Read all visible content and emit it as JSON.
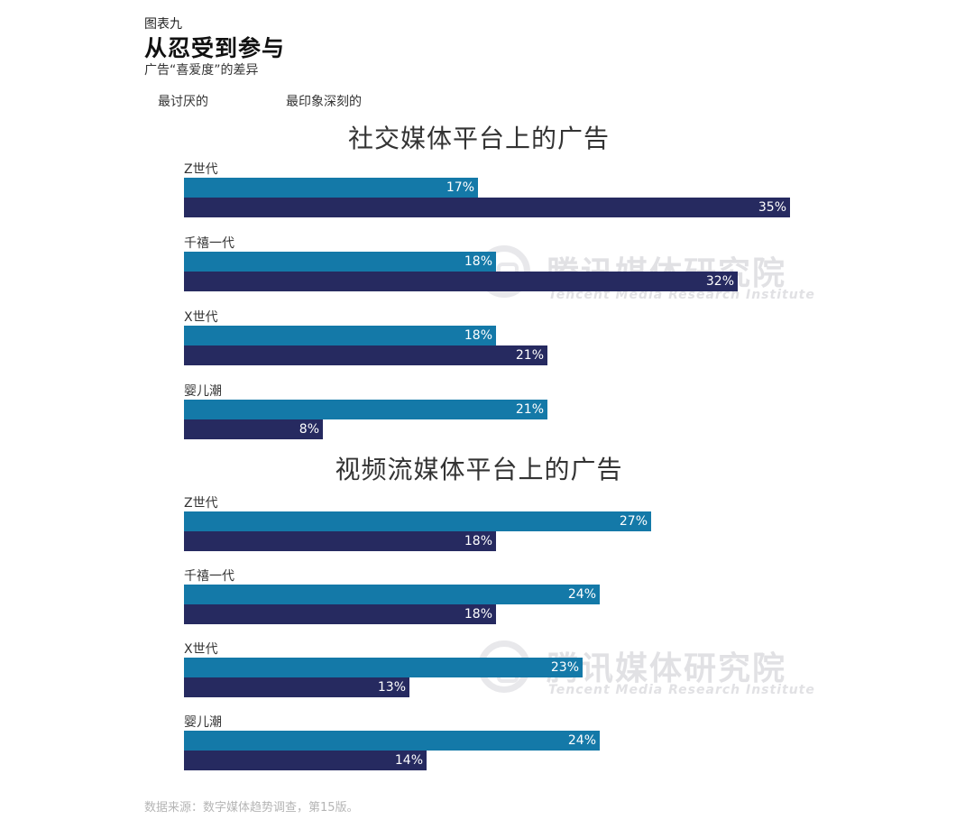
{
  "header": {
    "chart_label": "图表九",
    "title": "从忍受到参与",
    "subtitle": "广告“喜爱度”的差异"
  },
  "legend": [
    {
      "label": "最讨厌的",
      "color": "#1479a8"
    },
    {
      "label": "最印象深刻的",
      "color": "#262a60"
    }
  ],
  "watermark": {
    "cn": "腾讯媒体研究院",
    "en": "Tencent Media Research Institute",
    "logo_icon": "tencent-media-research-logo-icon"
  },
  "source": "数据来源：数字媒体趋势调查，第15版。",
  "chart_data": [
    {
      "type": "bar",
      "title": "社交媒体平台上的广告",
      "categories": [
        "Z世代",
        "千禧一代",
        "X世代",
        "婴儿潮"
      ],
      "series": [
        {
          "name": "最讨厌的",
          "values": [
            17,
            18,
            18,
            21
          ]
        },
        {
          "name": "最印象深刻的",
          "values": [
            35,
            32,
            21,
            8
          ]
        }
      ],
      "value_suffix": "%",
      "orientation": "horizontal",
      "legend_position": "top-left",
      "grid": false
    },
    {
      "type": "bar",
      "title": "视频流媒体平台上的广告",
      "categories": [
        "Z世代",
        "千禧一代",
        "X世代",
        "婴儿潮"
      ],
      "series": [
        {
          "name": "最讨厌的",
          "values": [
            27,
            24,
            23,
            24
          ]
        },
        {
          "name": "最印象深刻的",
          "values": [
            18,
            18,
            13,
            14
          ]
        }
      ],
      "value_suffix": "%",
      "orientation": "horizontal",
      "legend_position": "top-left",
      "grid": false
    }
  ]
}
